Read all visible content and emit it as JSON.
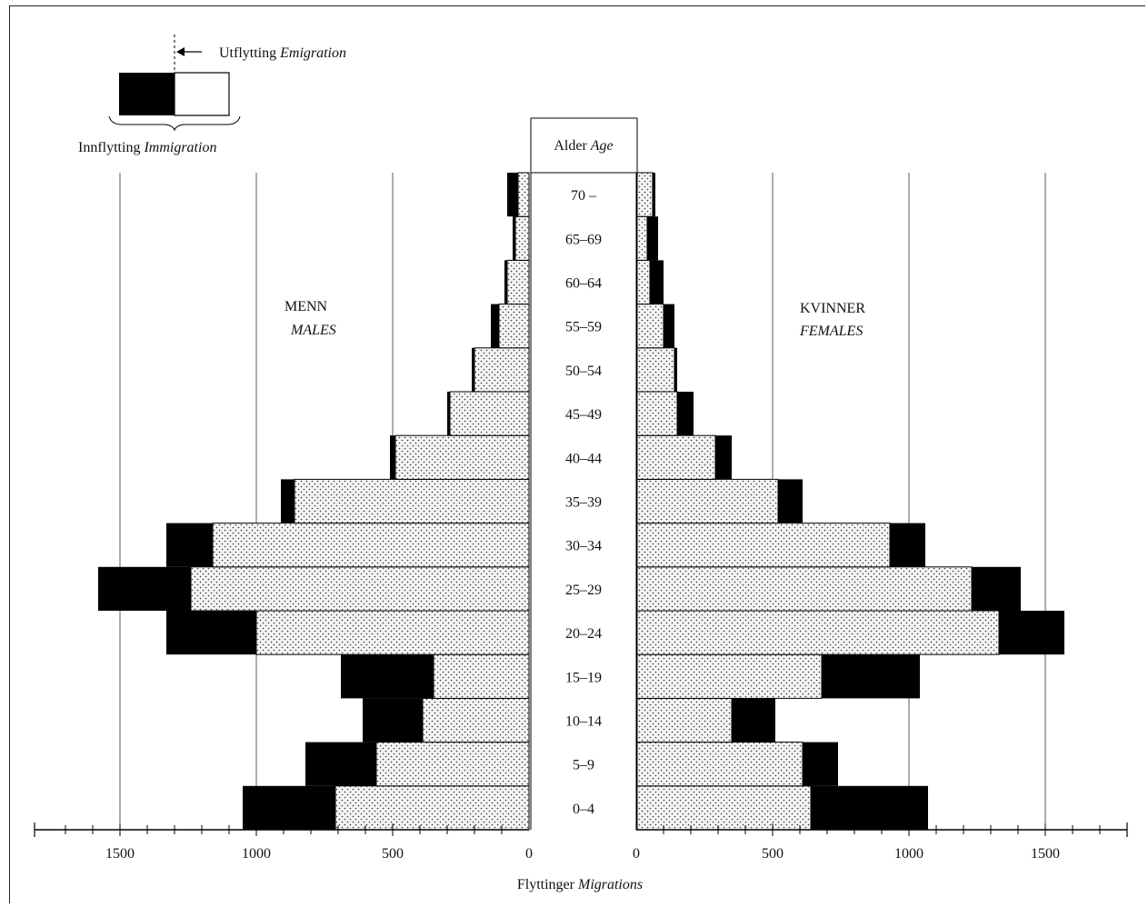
{
  "legend": {
    "emigration_no": "Utflytting",
    "emigration_en": "Emigration",
    "immigration_no": "Innflytting",
    "immigration_en": "Immigration"
  },
  "labels": {
    "age_no": "Alder",
    "age_en": "Age",
    "males_no": "MENN",
    "males_en": "MALES",
    "females_no": "KVINNER",
    "females_en": "FEMALES",
    "xlabel_no": "Flyttinger",
    "xlabel_en": "Migrations"
  },
  "chart_data": {
    "type": "bar",
    "orientation": "horizontal",
    "layout": "population-pyramid",
    "categories": [
      "0–4",
      "5–9",
      "10–14",
      "15–19",
      "20–24",
      "25–29",
      "30–34",
      "35–39",
      "40–44",
      "45–49",
      "50–54",
      "55–59",
      "60–64",
      "65–69",
      "70 –"
    ],
    "category_header": "Alder Age",
    "xlabel": "Flyttinger Migrations",
    "xlim": [
      0,
      1700
    ],
    "xticks": [
      0,
      500,
      1000,
      1500
    ],
    "grid": true,
    "legend_position": "top-left",
    "colors": {
      "immigration_fill": "#000000",
      "emigration_fill": "#f2f2f2",
      "emigration_dots": "#333333"
    },
    "series": [
      {
        "name": "MENN MALES Innflytting Immigration",
        "values": [
          1050,
          820,
          610,
          690,
          1330,
          1580,
          1330,
          910,
          510,
          300,
          210,
          140,
          90,
          60,
          80
        ]
      },
      {
        "name": "MENN MALES Utflytting Emigration",
        "values": [
          710,
          560,
          390,
          350,
          1000,
          1240,
          1160,
          860,
          490,
          290,
          200,
          110,
          80,
          50,
          40
        ]
      },
      {
        "name": "KVINNER FEMALES Innflytting Immigration",
        "values": [
          1070,
          740,
          510,
          1040,
          1570,
          1410,
          1060,
          610,
          350,
          210,
          150,
          140,
          100,
          80,
          70
        ]
      },
      {
        "name": "KVINNER FEMALES Utflytting Emigration",
        "values": [
          640,
          610,
          350,
          680,
          1330,
          1230,
          930,
          520,
          290,
          150,
          140,
          100,
          50,
          40,
          60
        ]
      }
    ]
  }
}
